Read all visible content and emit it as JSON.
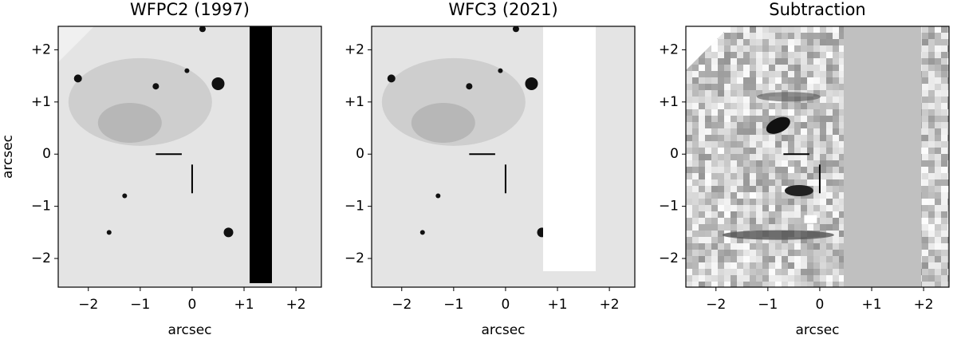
{
  "chart_data": [
    {
      "type": "image",
      "title": "WFPC2 (1997)",
      "xlabel": "arcsec",
      "ylabel": "arcsec",
      "xlim": [
        -2.58,
        2.49
      ],
      "ylim": [
        -2.55,
        2.45
      ],
      "xticks": [
        {
          "value": -2,
          "label": "−2"
        },
        {
          "value": -1,
          "label": "−1"
        },
        0,
        {
          "value": 1,
          "label": "+1"
        },
        {
          "value": 2,
          "label": "+2"
        }
      ],
      "yticks": [
        {
          "value": -2,
          "label": "−2"
        },
        {
          "value": -1,
          "label": "−1"
        },
        0,
        {
          "value": 1,
          "label": "+1"
        },
        {
          "value": 2,
          "label": "+2"
        }
      ]
    },
    {
      "type": "image",
      "title": "WFC3 (2021)",
      "xlabel": "arcsec",
      "xlim": [
        -2.58,
        2.49
      ],
      "ylim": [
        -2.55,
        2.45
      ],
      "xticks": [
        {
          "value": -2,
          "label": "−2"
        },
        {
          "value": -1,
          "label": "−1"
        },
        0,
        {
          "value": 1,
          "label": "+1"
        },
        {
          "value": 2,
          "label": "+2"
        }
      ],
      "yticks": [
        {
          "value": -2,
          "label": "−2"
        },
        {
          "value": -1,
          "label": "−1"
        },
        0,
        {
          "value": 1,
          "label": "+1"
        },
        {
          "value": 2,
          "label": "+2"
        }
      ]
    },
    {
      "type": "image",
      "title": "Subtraction",
      "xlabel": "arcsec",
      "xlim": [
        -2.58,
        2.49
      ],
      "ylim": [
        -2.55,
        2.45
      ],
      "xticks": [
        {
          "value": -2,
          "label": "−2"
        },
        {
          "value": -1,
          "label": "−1"
        },
        0,
        {
          "value": 1,
          "label": "+1"
        },
        {
          "value": 2,
          "label": "+2"
        }
      ],
      "yticks": [
        {
          "value": -2,
          "label": "−2"
        },
        {
          "value": -1,
          "label": "−1"
        },
        0,
        {
          "value": 1,
          "label": "+1"
        },
        {
          "value": 2,
          "label": "+2"
        }
      ]
    }
  ]
}
